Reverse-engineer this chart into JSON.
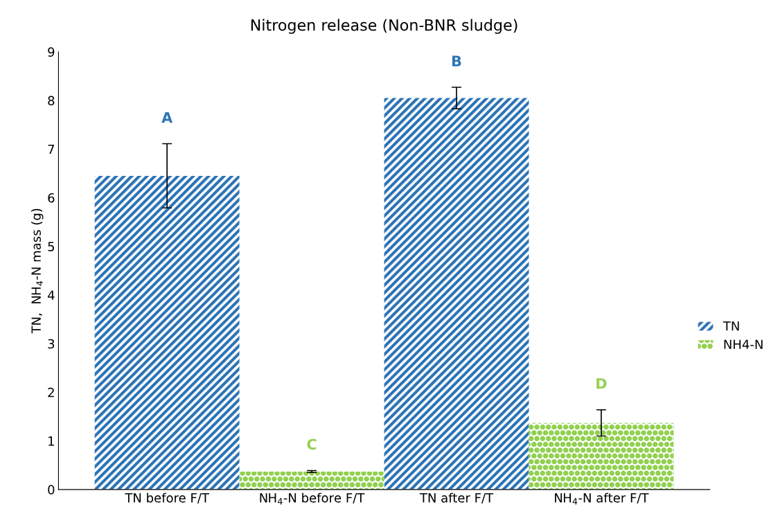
{
  "chart_data": {
    "type": "bar",
    "title": "Nitrogen release (Non-BNR sludge)",
    "ylabel": "TN,  NH$_{4}$-N mass (g)",
    "categories": [
      "TN before F/T",
      "NH$_{4}$-N before F/T",
      "TN after F/T",
      "NH$_{4}$-N after F/T"
    ],
    "series": [
      {
        "name": "TN",
        "color": "#2e75b6",
        "values": [
          6.45,
          null,
          8.05,
          null
        ],
        "errors": [
          0.66,
          null,
          0.22,
          null
        ]
      },
      {
        "name": "NH4-N",
        "color": "#92d050",
        "values": [
          null,
          0.37,
          null,
          1.37
        ],
        "errors": [
          null,
          0.02,
          null,
          0.27
        ]
      }
    ],
    "annotations": [
      "A",
      "C",
      "B",
      "D"
    ],
    "ylim": [
      0,
      9
    ],
    "yticks": [
      0,
      1,
      2,
      3,
      4,
      5,
      6,
      7,
      8,
      9
    ],
    "grid": false,
    "legend": "right"
  }
}
